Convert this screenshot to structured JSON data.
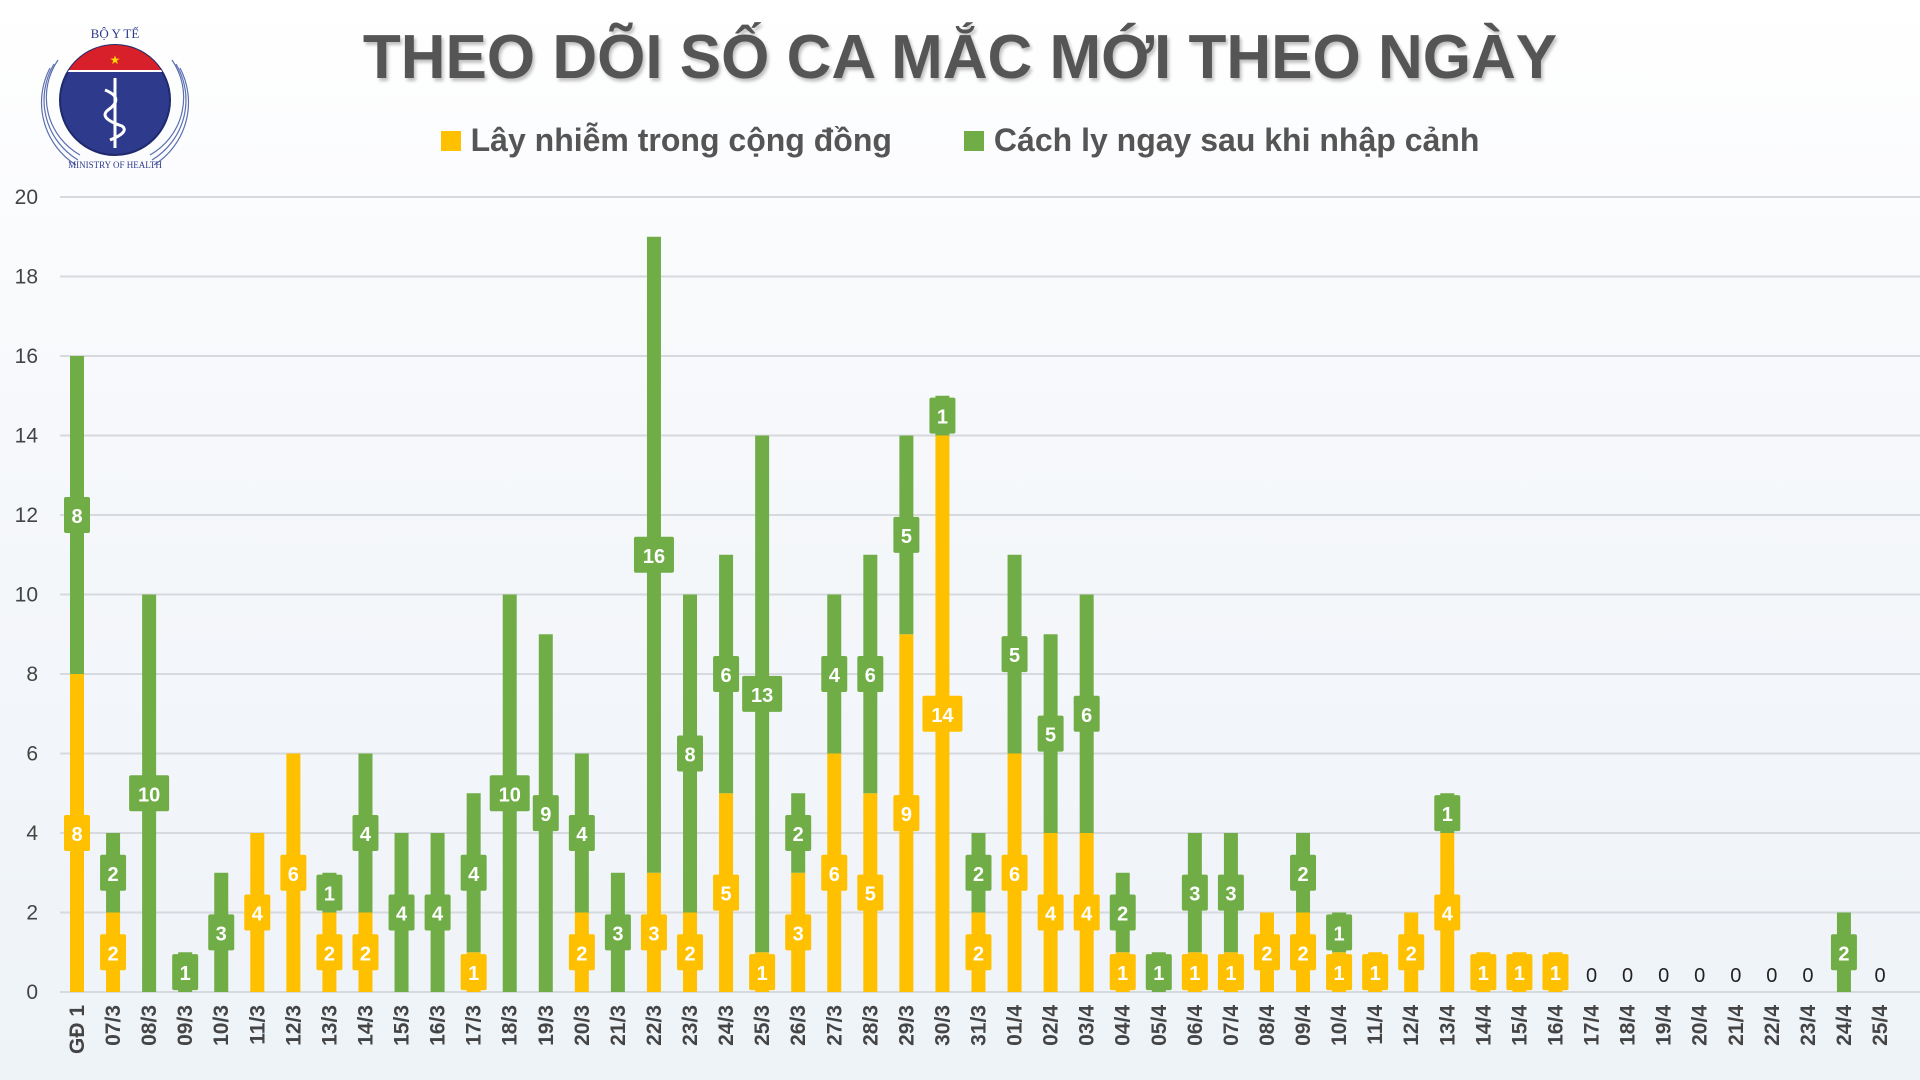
{
  "logo": {
    "top_text": "BỘ Y TẾ",
    "bottom_text": "MINISTRY OF HEALTH"
  },
  "chart_data": {
    "type": "bar",
    "stacked": true,
    "title": "THEO DÕI SỐ CA MẮC MỚI THEO NGÀY",
    "xlabel": "",
    "ylabel": "",
    "ylim": [
      0,
      20
    ],
    "yticks": [
      0,
      2,
      4,
      6,
      8,
      10,
      12,
      14,
      16,
      18,
      20
    ],
    "grid": true,
    "legend_position": "top",
    "categories": [
      "GĐ 1",
      "07/3",
      "08/3",
      "09/3",
      "10/3",
      "11/3",
      "12/3",
      "13/3",
      "14/3",
      "15/3",
      "16/3",
      "17/3",
      "18/3",
      "19/3",
      "20/3",
      "21/3",
      "22/3",
      "23/3",
      "24/3",
      "25/3",
      "26/3",
      "27/3",
      "28/3",
      "29/3",
      "30/3",
      "31/3",
      "01/4",
      "02/4",
      "03/4",
      "04/4",
      "05/4",
      "06/4",
      "07/4",
      "08/4",
      "09/4",
      "10/4",
      "11/4",
      "12/4",
      "13/4",
      "14/4",
      "15/4",
      "16/4",
      "17/4",
      "18/4",
      "19/4",
      "20/4",
      "21/4",
      "22/4",
      "23/4",
      "24/4",
      "25/4"
    ],
    "series": [
      {
        "name": "Lây nhiễm trong cộng đồng",
        "color": "#FFC000",
        "values": [
          8,
          2,
          0,
          0,
          0,
          4,
          6,
          2,
          2,
          0,
          0,
          1,
          0,
          0,
          2,
          0,
          3,
          2,
          5,
          1,
          3,
          6,
          5,
          9,
          14,
          2,
          6,
          4,
          4,
          1,
          0,
          1,
          1,
          2,
          2,
          1,
          1,
          2,
          4,
          1,
          1,
          1,
          0,
          0,
          0,
          0,
          0,
          0,
          0,
          0,
          0
        ]
      },
      {
        "name": "Cách ly ngay sau khi nhập cảnh",
        "color": "#70AD47",
        "values": [
          8,
          2,
          10,
          1,
          3,
          0,
          0,
          1,
          4,
          4,
          4,
          4,
          10,
          9,
          4,
          3,
          16,
          8,
          6,
          13,
          2,
          4,
          6,
          5,
          1,
          2,
          5,
          5,
          6,
          2,
          1,
          3,
          3,
          0,
          2,
          1,
          0,
          0,
          1,
          0,
          0,
          0,
          0,
          0,
          0,
          0,
          0,
          0,
          0,
          2,
          0
        ]
      }
    ]
  }
}
